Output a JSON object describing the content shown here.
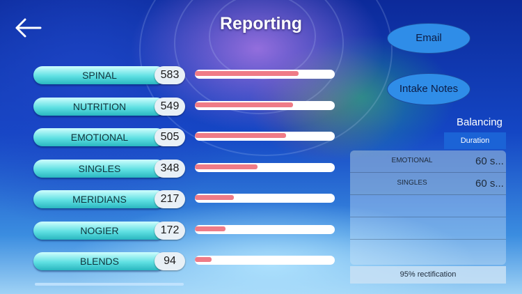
{
  "header": {
    "title": "Reporting",
    "back_icon": "arrow-left-icon"
  },
  "buttons": {
    "email": "Email",
    "intake_notes": "Intake Notes"
  },
  "categories": [
    {
      "label": "SPINAL",
      "count": "583",
      "level": 0.74
    },
    {
      "label": "NUTRITION",
      "count": "549",
      "level": 0.7
    },
    {
      "label": "EMOTIONAL",
      "count": "505",
      "level": 0.65
    },
    {
      "label": "SINGLES",
      "count": "348",
      "level": 0.45
    },
    {
      "label": "MERIDIANS",
      "count": "217",
      "level": 0.28
    },
    {
      "label": "NOGIER",
      "count": "172",
      "level": 0.22
    },
    {
      "label": "BLENDS",
      "count": "94",
      "level": 0.12
    }
  ],
  "panel": {
    "title": "Balancing",
    "tab": "Duration",
    "rows": [
      {
        "name": "EMOTIONAL",
        "value": "60 s..."
      },
      {
        "name": "SINGLES",
        "value": "60 s..."
      }
    ],
    "footer": "95% rectification"
  },
  "colors": {
    "bar_fill": "#ef7b87",
    "button": "#2f8de8",
    "tab": "#1b63d6",
    "pill": "#5fe0e2"
  }
}
